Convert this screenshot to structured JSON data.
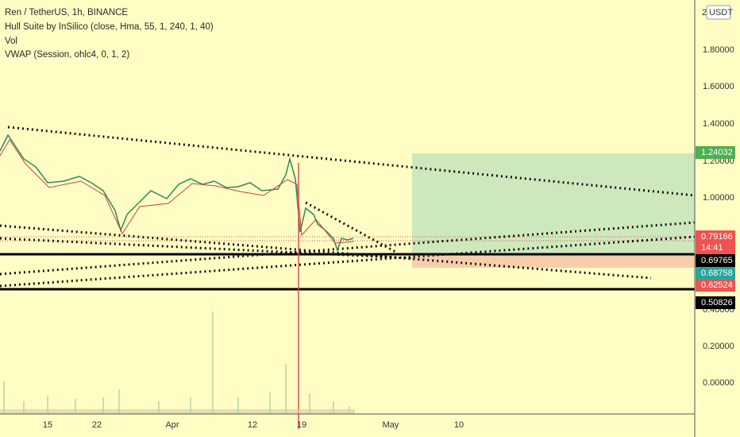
{
  "header": {
    "symbol": "Ren / TetherUS, 1h, BINANCE",
    "indicators": [
      "Hull Suite by InSilico (close, Hma, 55, 1, 240, 1, 40)",
      "Vol",
      "VWAP (Session, ohlc4, 0, 1, 2)"
    ]
  },
  "price_axis": {
    "top_label": "2",
    "currency": "USDT",
    "labels": [
      "1.80000",
      "1.60000",
      "1.40000",
      "1.20000",
      "1.00000",
      "0.40000",
      "0.20000",
      "0.00000"
    ]
  },
  "time_axis": {
    "labels": [
      "15",
      "22",
      "Apr",
      "12",
      "19",
      "May",
      "10"
    ]
  },
  "badges": [
    {
      "label": "1.24032"
    },
    {
      "label": "0.79166",
      "sub": "14:41"
    },
    {
      "label": "0.69765"
    },
    {
      "label": "0.68758"
    },
    {
      "label": "0.62524"
    },
    {
      "label": "0.50826"
    }
  ]
}
